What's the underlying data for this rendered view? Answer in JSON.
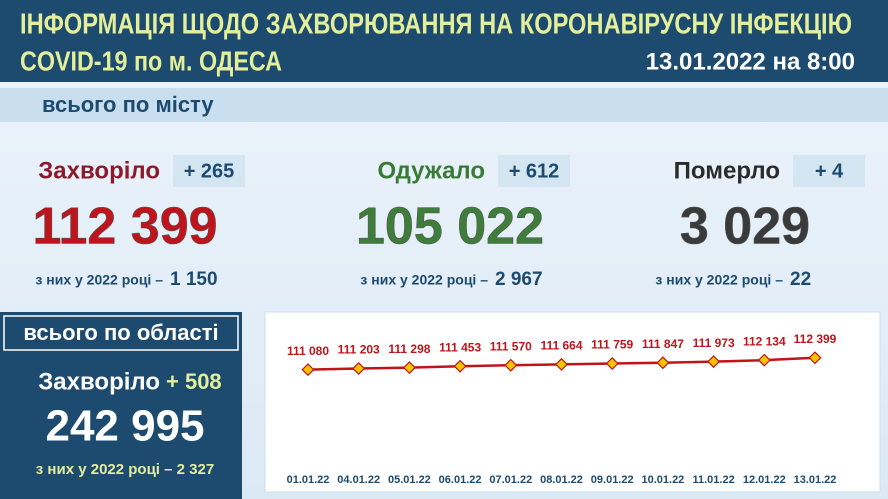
{
  "header": {
    "title_line1": "ІНФОРМАЦІЯ ЩОДО ЗАХВОРЮВАННЯ НА КОРОНАВІРУСНУ ІНФЕКЦІЮ",
    "title_line2": "COVID-19 по м. ОДЕСА",
    "date": "13.01.2022 на 8:00"
  },
  "city": {
    "section_label": "всього по місту",
    "stats": [
      {
        "label": "Захворіло",
        "delta": "+ 265",
        "total": "112 399",
        "note": "з них у 2022 році –",
        "note_value": "1 150"
      },
      {
        "label": "Одужало",
        "delta": "+ 612",
        "total": "105 022",
        "note": "з них у 2022 році –",
        "note_value": "2 967"
      },
      {
        "label": "Померло",
        "delta": "+ 4",
        "total": "3 029",
        "note": "з них у 2022 році –",
        "note_value": "22"
      }
    ]
  },
  "region": {
    "section_label": "всього по області",
    "label": "Захворіло",
    "delta": "+ 508",
    "total": "242 995",
    "note": "з них у 2022 році – 2 327"
  },
  "chart_data": {
    "type": "line",
    "categories": [
      "01.01.22",
      "04.01.22",
      "05.01.22",
      "06.01.22",
      "07.01.22",
      "08.01.22",
      "09.01.22",
      "10.01.22",
      "11.01.22",
      "12.01.22",
      "13.01.22"
    ],
    "series": [
      {
        "color": "#c0141c",
        "values": [
          111080,
          111203,
          111298,
          111453,
          111570,
          111664,
          111759,
          111847,
          111973,
          112134,
          112399
        ],
        "value_labels": [
          "111 080",
          "111 203",
          "111 298",
          "111 453",
          "111 570",
          "111 664",
          "111 759",
          "111 847",
          "111 973",
          "112 134",
          "112 399"
        ]
      }
    ],
    "ylim": [
      101000,
      115500
    ]
  }
}
